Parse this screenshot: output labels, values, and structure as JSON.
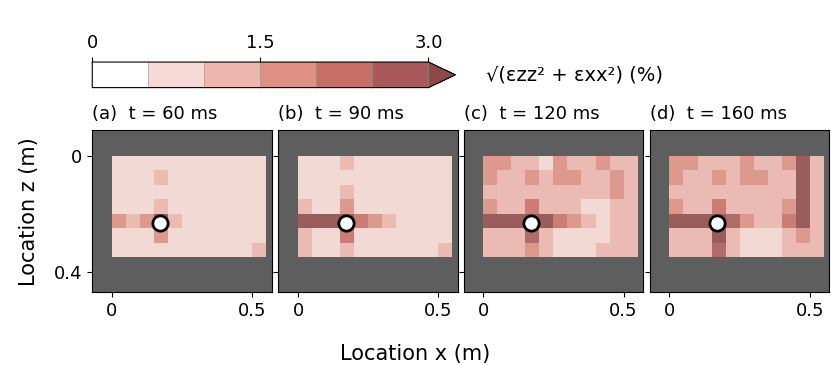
{
  "colorbar": {
    "label": "√(εzz² + εxx²) (%)",
    "range": [
      0,
      3.0
    ],
    "ticks": [
      0,
      1.5,
      3.0
    ],
    "levels": [
      0,
      0.5,
      1.0,
      1.5,
      2.0,
      2.5,
      3.0
    ],
    "colors": [
      "#ffffff",
      "#f7dad6",
      "#efb6ae",
      "#e08f85",
      "#c96e66",
      "#a9595a"
    ]
  },
  "xlabel": "Location x (m)",
  "ylabel": "Location z (m)",
  "chart_data": [
    {
      "type": "heatmap",
      "title": "(a)  t = 60 ms",
      "xlim": [
        -0.07,
        0.57
      ],
      "ylim": [
        0.47,
        -0.09
      ],
      "xticks": [
        0,
        0.5
      ],
      "yticks": [
        0,
        0.4
      ],
      "tick_labels": true,
      "x_edges": [
        0,
        0.05,
        0.1,
        0.15,
        0.2,
        0.25,
        0.3,
        0.35,
        0.4,
        0.45,
        0.5,
        0.55
      ],
      "z_edges": [
        0,
        0.05,
        0.1,
        0.15,
        0.2,
        0.25,
        0.3,
        0.35
      ],
      "hole_location": [
        0.17,
        0.23
      ],
      "cells": [
        [
          0.5,
          0.5,
          0.5,
          0.8,
          0.5,
          0.5,
          0.5,
          0.5,
          0.5,
          0.5,
          0.5
        ],
        [
          0.5,
          0.5,
          0.5,
          1.0,
          0.5,
          0.5,
          0.5,
          0.5,
          0.5,
          0.5,
          0.5
        ],
        [
          0.5,
          0.5,
          0.5,
          0.8,
          0.5,
          0.5,
          0.5,
          0.5,
          0.5,
          0.5,
          0.5
        ],
        [
          0.8,
          0.5,
          0.5,
          1.2,
          0.5,
          0.5,
          0.5,
          0.5,
          0.5,
          0.5,
          0.5
        ],
        [
          1.8,
          1.0,
          1.5,
          3.0,
          1.2,
          0.5,
          0.5,
          0.5,
          0.5,
          0.5,
          0.5
        ],
        [
          0.8,
          0.5,
          0.5,
          1.5,
          0.8,
          0.5,
          0.5,
          0.5,
          0.5,
          0.5,
          0.5
        ],
        [
          0.8,
          0.5,
          0.5,
          0.8,
          0.5,
          0.5,
          0.5,
          0.5,
          0.5,
          0.5,
          1.0
        ]
      ]
    },
    {
      "type": "heatmap",
      "title": "(b)  t = 90 ms",
      "xlim": [
        -0.07,
        0.57
      ],
      "ylim": [
        0.47,
        -0.09
      ],
      "xticks": [
        0,
        0.5
      ],
      "yticks": [
        0,
        0.4
      ],
      "tick_labels": "x",
      "x_edges": [
        0,
        0.05,
        0.1,
        0.15,
        0.2,
        0.25,
        0.3,
        0.35,
        0.4,
        0.45,
        0.5,
        0.55
      ],
      "z_edges": [
        0,
        0.05,
        0.1,
        0.15,
        0.2,
        0.25,
        0.3,
        0.35
      ],
      "hole_location": [
        0.17,
        0.23
      ],
      "cells": [
        [
          0.8,
          0.5,
          0.5,
          1.0,
          0.5,
          0.5,
          0.5,
          0.8,
          0.5,
          0.5,
          0.5
        ],
        [
          0.8,
          0.8,
          0.5,
          0.8,
          0.8,
          0.5,
          0.5,
          0.5,
          0.5,
          0.5,
          0.8
        ],
        [
          0.8,
          0.5,
          0.8,
          1.0,
          0.5,
          0.8,
          0.5,
          0.5,
          0.5,
          0.5,
          0.5
        ],
        [
          1.0,
          0.8,
          0.8,
          1.5,
          0.8,
          0.5,
          0.5,
          0.5,
          0.5,
          0.5,
          0.8
        ],
        [
          3.2,
          3.2,
          3.0,
          3.5,
          2.0,
          1.5,
          1.0,
          0.8,
          0.5,
          0.5,
          0.5
        ],
        [
          1.0,
          0.8,
          0.8,
          2.0,
          0.8,
          0.5,
          0.5,
          0.5,
          0.5,
          0.5,
          0.8
        ],
        [
          1.0,
          0.8,
          0.8,
          1.2,
          0.8,
          0.5,
          0.5,
          0.5,
          0.5,
          0.8,
          1.0
        ]
      ]
    },
    {
      "type": "heatmap",
      "title": "(c)  t = 120 ms",
      "xlim": [
        -0.07,
        0.57
      ],
      "ylim": [
        0.47,
        -0.09
      ],
      "xticks": [
        0,
        0.5
      ],
      "yticks": [
        0,
        0.4
      ],
      "tick_labels": "x",
      "x_edges": [
        0,
        0.05,
        0.1,
        0.15,
        0.2,
        0.25,
        0.3,
        0.35,
        0.4,
        0.45,
        0.5,
        0.55
      ],
      "z_edges": [
        0,
        0.05,
        0.1,
        0.15,
        0.2,
        0.25,
        0.3,
        0.35
      ],
      "hole_location": [
        0.17,
        0.23
      ],
      "cells": [
        [
          1.5,
          1.5,
          1.0,
          1.0,
          0.8,
          1.5,
          1.0,
          1.0,
          1.5,
          1.0,
          1.0
        ],
        [
          1.5,
          1.2,
          1.0,
          1.5,
          1.0,
          1.5,
          1.5,
          1.0,
          1.0,
          1.5,
          1.0
        ],
        [
          1.0,
          1.0,
          1.2,
          1.2,
          1.0,
          1.0,
          1.0,
          1.0,
          1.0,
          1.5,
          1.0
        ],
        [
          1.5,
          1.0,
          1.0,
          2.0,
          1.0,
          1.0,
          1.0,
          0.8,
          0.8,
          1.0,
          1.2
        ],
        [
          3.5,
          3.5,
          3.5,
          3.5,
          3.0,
          2.0,
          1.5,
          1.0,
          0.8,
          1.0,
          1.0
        ],
        [
          1.2,
          1.0,
          1.0,
          2.5,
          1.0,
          0.8,
          0.8,
          0.8,
          0.8,
          1.0,
          1.0
        ],
        [
          1.2,
          1.0,
          1.0,
          1.5,
          1.0,
          0.8,
          0.8,
          0.8,
          1.0,
          1.0,
          1.2
        ]
      ]
    },
    {
      "type": "heatmap",
      "title": "(d)  t = 160 ms",
      "xlim": [
        -0.07,
        0.57
      ],
      "ylim": [
        0.47,
        -0.09
      ],
      "xticks": [
        0,
        0.5
      ],
      "yticks": [
        0,
        0.4
      ],
      "tick_labels": "x",
      "x_edges": [
        0,
        0.05,
        0.1,
        0.15,
        0.2,
        0.25,
        0.3,
        0.35,
        0.4,
        0.45,
        0.5,
        0.55
      ],
      "z_edges": [
        0,
        0.05,
        0.1,
        0.15,
        0.2,
        0.25,
        0.3,
        0.35
      ],
      "hole_location": [
        0.17,
        0.23
      ],
      "cells": [
        [
          1.5,
          1.5,
          1.0,
          1.0,
          1.0,
          1.5,
          1.0,
          1.2,
          1.5,
          3.5,
          1.0
        ],
        [
          1.5,
          1.2,
          1.0,
          1.5,
          1.0,
          1.5,
          1.5,
          1.0,
          1.0,
          3.5,
          1.0
        ],
        [
          1.0,
          1.0,
          1.2,
          1.2,
          1.0,
          1.0,
          1.0,
          1.0,
          1.0,
          3.5,
          1.0
        ],
        [
          1.5,
          1.0,
          1.0,
          2.0,
          1.0,
          1.0,
          1.0,
          1.0,
          1.5,
          3.5,
          1.0
        ],
        [
          3.5,
          3.5,
          3.5,
          3.5,
          2.5,
          1.5,
          1.2,
          1.0,
          2.0,
          3.5,
          1.0
        ],
        [
          1.2,
          1.0,
          1.0,
          3.2,
          1.0,
          0.8,
          0.8,
          0.8,
          1.0,
          1.5,
          1.0
        ],
        [
          1.2,
          1.0,
          1.0,
          2.5,
          1.0,
          0.8,
          0.8,
          0.8,
          1.0,
          1.0,
          1.2
        ]
      ]
    }
  ]
}
